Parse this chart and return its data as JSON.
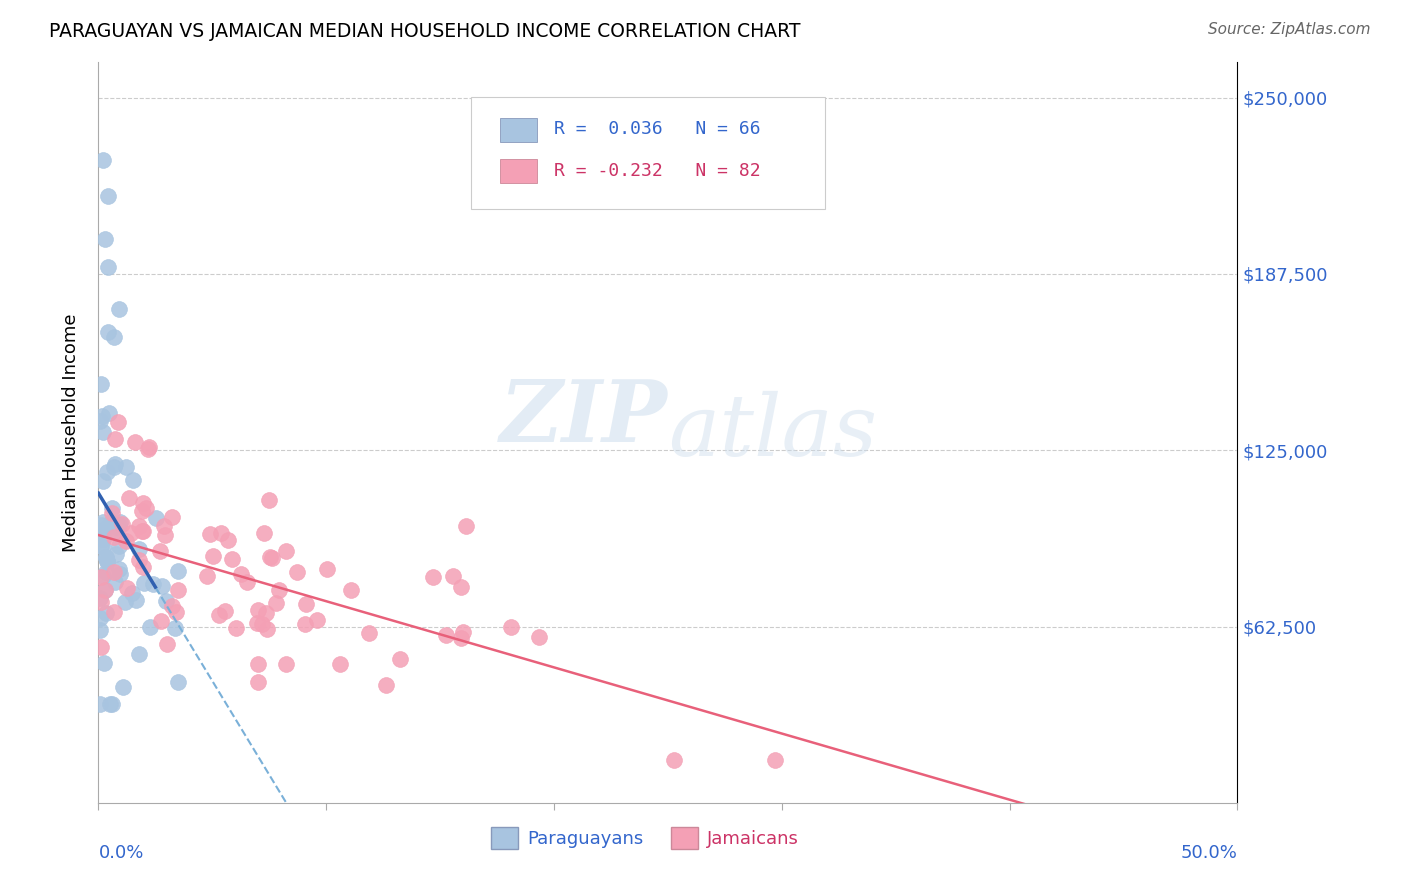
{
  "title": "PARAGUAYAN VS JAMAICAN MEDIAN HOUSEHOLD INCOME CORRELATION CHART",
  "source": "Source: ZipAtlas.com",
  "ylabel": "Median Household Income",
  "xlim": [
    0.0,
    0.5
  ],
  "ylim": [
    0,
    262500
  ],
  "watermark_zip": "ZIP",
  "watermark_atlas": "atlas",
  "paraguayan_color": "#a8c4e0",
  "jamaican_color": "#f4a0b5",
  "paraguayan_line_color": "#3060b0",
  "jamaican_line_color": "#e8607a",
  "paraguayan_trendline_color": "#7ab0d8",
  "legend_paraguayan_R": "0.036",
  "legend_paraguayan_N": "66",
  "legend_jamaican_R": "-0.232",
  "legend_jamaican_N": "82",
  "label_color": "#3366cc",
  "jamaican_label_color": "#cc3366"
}
